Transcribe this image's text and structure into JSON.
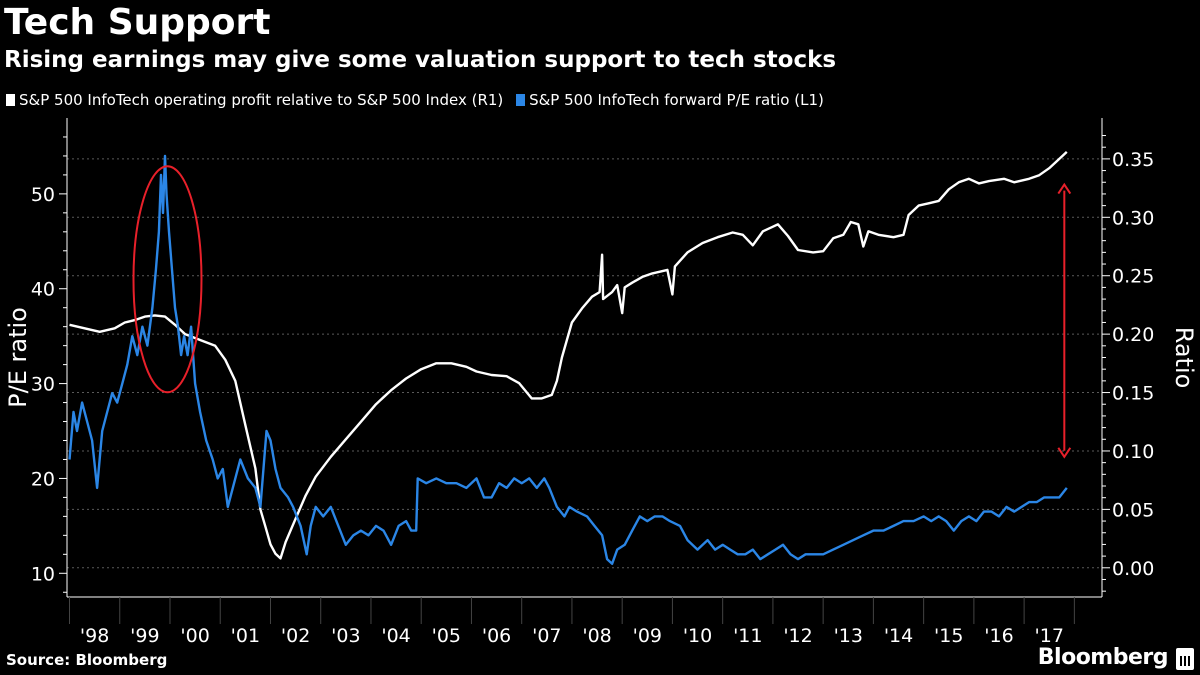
{
  "header": {
    "title": "Tech Support",
    "subtitle": "Rising earnings may give some valuation support to tech stocks"
  },
  "legend": [
    {
      "label": "S&P 500 InfoTech operating profit relative to S&P 500 Index (R1)",
      "color": "#ffffff"
    },
    {
      "label": "S&P 500 InfoTech forward P/E ratio (L1)",
      "color": "#2b86e6"
    }
  ],
  "footer": {
    "source": "Source: Bloomberg",
    "brand": "Bloomberg"
  },
  "chart_data": {
    "type": "line",
    "x_tick_labels": [
      "'98",
      "'99",
      "'00",
      "'01",
      "'02",
      "'03",
      "'04",
      "'05",
      "'06",
      "'07",
      "'08",
      "'09",
      "'10",
      "'11",
      "'12",
      "'13",
      "'14",
      "'15",
      "'16",
      "'17"
    ],
    "xlim": [
      1997.95,
      2018.55
    ],
    "left_axis": {
      "label": "P/E ratio",
      "ylim": [
        7.5,
        58
      ],
      "ticks": [
        10,
        20,
        30,
        40,
        50
      ]
    },
    "right_axis": {
      "label": "Ratio",
      "ylim": [
        -0.025,
        0.385
      ],
      "ticks": [
        "0.00",
        "0.05",
        "0.10",
        "0.15",
        "0.20",
        "0.25",
        "0.30",
        "0.35"
      ]
    },
    "series": [
      {
        "name": "S&P 500 InfoTech operating profit relative to S&P 500 Index (R1)",
        "axis": "right",
        "color": "#ffffff",
        "points": [
          [
            1998.0,
            0.208
          ],
          [
            1998.3,
            0.205
          ],
          [
            1998.6,
            0.202
          ],
          [
            1998.9,
            0.205
          ],
          [
            1999.1,
            0.21
          ],
          [
            1999.3,
            0.212
          ],
          [
            1999.5,
            0.215
          ],
          [
            1999.7,
            0.216
          ],
          [
            1999.9,
            0.215
          ],
          [
            2000.1,
            0.208
          ],
          [
            2000.3,
            0.2
          ],
          [
            2000.6,
            0.195
          ],
          [
            2000.9,
            0.19
          ],
          [
            2001.1,
            0.178
          ],
          [
            2001.3,
            0.16
          ],
          [
            2001.5,
            0.122
          ],
          [
            2001.7,
            0.085
          ],
          [
            2001.8,
            0.05
          ],
          [
            2001.9,
            0.035
          ],
          [
            2002.0,
            0.02
          ],
          [
            2002.1,
            0.012
          ],
          [
            2002.2,
            0.008
          ],
          [
            2002.3,
            0.022
          ],
          [
            2002.5,
            0.042
          ],
          [
            2002.7,
            0.062
          ],
          [
            2002.9,
            0.078
          ],
          [
            2003.2,
            0.095
          ],
          [
            2003.5,
            0.11
          ],
          [
            2003.8,
            0.125
          ],
          [
            2004.1,
            0.14
          ],
          [
            2004.4,
            0.152
          ],
          [
            2004.7,
            0.162
          ],
          [
            2005.0,
            0.17
          ],
          [
            2005.3,
            0.175
          ],
          [
            2005.6,
            0.175
          ],
          [
            2005.9,
            0.172
          ],
          [
            2006.1,
            0.168
          ],
          [
            2006.4,
            0.165
          ],
          [
            2006.7,
            0.164
          ],
          [
            2006.95,
            0.158
          ],
          [
            2007.2,
            0.145
          ],
          [
            2007.4,
            0.145
          ],
          [
            2007.6,
            0.148
          ],
          [
            2007.7,
            0.16
          ],
          [
            2007.8,
            0.18
          ],
          [
            2007.9,
            0.195
          ],
          [
            2008.0,
            0.21
          ],
          [
            2008.2,
            0.222
          ],
          [
            2008.4,
            0.232
          ],
          [
            2008.55,
            0.236
          ],
          [
            2008.6,
            0.268
          ],
          [
            2008.62,
            0.23
          ],
          [
            2008.8,
            0.236
          ],
          [
            2008.9,
            0.242
          ],
          [
            2009.0,
            0.218
          ],
          [
            2009.05,
            0.24
          ],
          [
            2009.2,
            0.244
          ],
          [
            2009.4,
            0.249
          ],
          [
            2009.6,
            0.252
          ],
          [
            2009.9,
            0.255
          ],
          [
            2010.0,
            0.234
          ],
          [
            2010.05,
            0.258
          ],
          [
            2010.3,
            0.27
          ],
          [
            2010.6,
            0.278
          ],
          [
            2010.9,
            0.283
          ],
          [
            2011.2,
            0.287
          ],
          [
            2011.4,
            0.285
          ],
          [
            2011.6,
            0.276
          ],
          [
            2011.8,
            0.288
          ],
          [
            2012.0,
            0.292
          ],
          [
            2012.1,
            0.294
          ],
          [
            2012.3,
            0.284
          ],
          [
            2012.5,
            0.272
          ],
          [
            2012.8,
            0.27
          ],
          [
            2013.0,
            0.271
          ],
          [
            2013.2,
            0.282
          ],
          [
            2013.4,
            0.285
          ],
          [
            2013.55,
            0.296
          ],
          [
            2013.7,
            0.294
          ],
          [
            2013.8,
            0.275
          ],
          [
            2013.9,
            0.288
          ],
          [
            2014.1,
            0.285
          ],
          [
            2014.4,
            0.283
          ],
          [
            2014.6,
            0.285
          ],
          [
            2014.7,
            0.302
          ],
          [
            2014.9,
            0.31
          ],
          [
            2015.1,
            0.312
          ],
          [
            2015.3,
            0.314
          ],
          [
            2015.5,
            0.324
          ],
          [
            2015.7,
            0.33
          ],
          [
            2015.9,
            0.333
          ],
          [
            2016.1,
            0.329
          ],
          [
            2016.3,
            0.331
          ],
          [
            2016.6,
            0.333
          ],
          [
            2016.8,
            0.33
          ],
          [
            2017.1,
            0.333
          ],
          [
            2017.3,
            0.336
          ],
          [
            2017.5,
            0.342
          ],
          [
            2017.7,
            0.35
          ],
          [
            2017.85,
            0.356
          ]
        ]
      },
      {
        "name": "S&P 500 InfoTech forward P/E ratio (L1)",
        "axis": "left",
        "color": "#2b86e6",
        "points": [
          [
            1998.0,
            22
          ],
          [
            1998.08,
            27
          ],
          [
            1998.15,
            25
          ],
          [
            1998.25,
            28
          ],
          [
            1998.35,
            26
          ],
          [
            1998.45,
            24
          ],
          [
            1998.55,
            19
          ],
          [
            1998.65,
            25
          ],
          [
            1998.75,
            27
          ],
          [
            1998.85,
            29
          ],
          [
            1998.95,
            28
          ],
          [
            1999.05,
            30
          ],
          [
            1999.15,
            32
          ],
          [
            1999.25,
            35
          ],
          [
            1999.35,
            33
          ],
          [
            1999.45,
            36
          ],
          [
            1999.55,
            34
          ],
          [
            1999.65,
            38
          ],
          [
            1999.72,
            42
          ],
          [
            1999.78,
            46
          ],
          [
            1999.82,
            52
          ],
          [
            1999.86,
            48
          ],
          [
            1999.9,
            54
          ],
          [
            1999.93,
            50
          ],
          [
            1999.98,
            46
          ],
          [
            2000.04,
            42
          ],
          [
            2000.1,
            38
          ],
          [
            2000.16,
            36
          ],
          [
            2000.22,
            33
          ],
          [
            2000.28,
            35
          ],
          [
            2000.35,
            33
          ],
          [
            2000.42,
            36
          ],
          [
            2000.5,
            30
          ],
          [
            2000.6,
            27
          ],
          [
            2000.72,
            24
          ],
          [
            2000.85,
            22
          ],
          [
            2000.95,
            20
          ],
          [
            2001.05,
            21
          ],
          [
            2001.15,
            17
          ],
          [
            2001.25,
            19
          ],
          [
            2001.4,
            22
          ],
          [
            2001.55,
            20
          ],
          [
            2001.7,
            19
          ],
          [
            2001.8,
            17
          ],
          [
            2001.92,
            25
          ],
          [
            2002.0,
            24
          ],
          [
            2002.1,
            21
          ],
          [
            2002.2,
            19
          ],
          [
            2002.35,
            18
          ],
          [
            2002.45,
            17
          ],
          [
            2002.6,
            15
          ],
          [
            2002.72,
            12
          ],
          [
            2002.8,
            15
          ],
          [
            2002.9,
            17
          ],
          [
            2003.05,
            16
          ],
          [
            2003.2,
            17
          ],
          [
            2003.35,
            15
          ],
          [
            2003.5,
            13
          ],
          [
            2003.65,
            14
          ],
          [
            2003.8,
            14.5
          ],
          [
            2003.95,
            14
          ],
          [
            2004.1,
            15
          ],
          [
            2004.25,
            14.5
          ],
          [
            2004.4,
            13
          ],
          [
            2004.55,
            15
          ],
          [
            2004.7,
            15.5
          ],
          [
            2004.8,
            14.5
          ],
          [
            2004.9,
            14.5
          ],
          [
            2004.93,
            20
          ],
          [
            2005.1,
            19.5
          ],
          [
            2005.3,
            20
          ],
          [
            2005.5,
            19.5
          ],
          [
            2005.7,
            19.5
          ],
          [
            2005.9,
            19
          ],
          [
            2006.1,
            20
          ],
          [
            2006.25,
            18
          ],
          [
            2006.4,
            18
          ],
          [
            2006.55,
            19.5
          ],
          [
            2006.7,
            19
          ],
          [
            2006.85,
            20
          ],
          [
            2007.0,
            19.5
          ],
          [
            2007.15,
            20
          ],
          [
            2007.3,
            19
          ],
          [
            2007.45,
            20
          ],
          [
            2007.55,
            19
          ],
          [
            2007.7,
            17
          ],
          [
            2007.85,
            16
          ],
          [
            2007.95,
            17
          ],
          [
            2008.1,
            16.5
          ],
          [
            2008.3,
            16
          ],
          [
            2008.45,
            15
          ],
          [
            2008.6,
            14
          ],
          [
            2008.7,
            11.5
          ],
          [
            2008.8,
            11
          ],
          [
            2008.9,
            12.5
          ],
          [
            2009.05,
            13
          ],
          [
            2009.2,
            14.5
          ],
          [
            2009.35,
            16
          ],
          [
            2009.5,
            15.5
          ],
          [
            2009.65,
            16
          ],
          [
            2009.8,
            16
          ],
          [
            2009.95,
            15.5
          ],
          [
            2010.15,
            15
          ],
          [
            2010.3,
            13.5
          ],
          [
            2010.5,
            12.5
          ],
          [
            2010.7,
            13.5
          ],
          [
            2010.85,
            12.5
          ],
          [
            2011.0,
            13
          ],
          [
            2011.15,
            12.5
          ],
          [
            2011.3,
            12
          ],
          [
            2011.45,
            12
          ],
          [
            2011.6,
            12.5
          ],
          [
            2011.75,
            11.5
          ],
          [
            2011.9,
            12
          ],
          [
            2012.05,
            12.5
          ],
          [
            2012.2,
            13
          ],
          [
            2012.35,
            12
          ],
          [
            2012.5,
            11.5
          ],
          [
            2012.65,
            12
          ],
          [
            2012.8,
            12
          ],
          [
            2013.0,
            12
          ],
          [
            2013.2,
            12.5
          ],
          [
            2013.4,
            13
          ],
          [
            2013.6,
            13.5
          ],
          [
            2013.8,
            14
          ],
          [
            2014.0,
            14.5
          ],
          [
            2014.2,
            14.5
          ],
          [
            2014.4,
            15
          ],
          [
            2014.6,
            15.5
          ],
          [
            2014.8,
            15.5
          ],
          [
            2015.0,
            16
          ],
          [
            2015.15,
            15.5
          ],
          [
            2015.3,
            16
          ],
          [
            2015.45,
            15.5
          ],
          [
            2015.6,
            14.5
          ],
          [
            2015.75,
            15.5
          ],
          [
            2015.9,
            16
          ],
          [
            2016.05,
            15.5
          ],
          [
            2016.2,
            16.5
          ],
          [
            2016.35,
            16.5
          ],
          [
            2016.5,
            16
          ],
          [
            2016.65,
            17
          ],
          [
            2016.8,
            16.5
          ],
          [
            2016.95,
            17
          ],
          [
            2017.1,
            17.5
          ],
          [
            2017.25,
            17.5
          ],
          [
            2017.4,
            18
          ],
          [
            2017.55,
            18
          ],
          [
            2017.7,
            18
          ],
          [
            2017.85,
            19
          ]
        ]
      }
    ],
    "annotations": [
      {
        "type": "ellipse",
        "target": "1999-2000 P/E peak",
        "color": "#e8202a"
      },
      {
        "type": "double-arrow",
        "target": "2017 gap between series",
        "color": "#e8202a"
      }
    ],
    "grid": true,
    "legend_position": "top-left"
  }
}
